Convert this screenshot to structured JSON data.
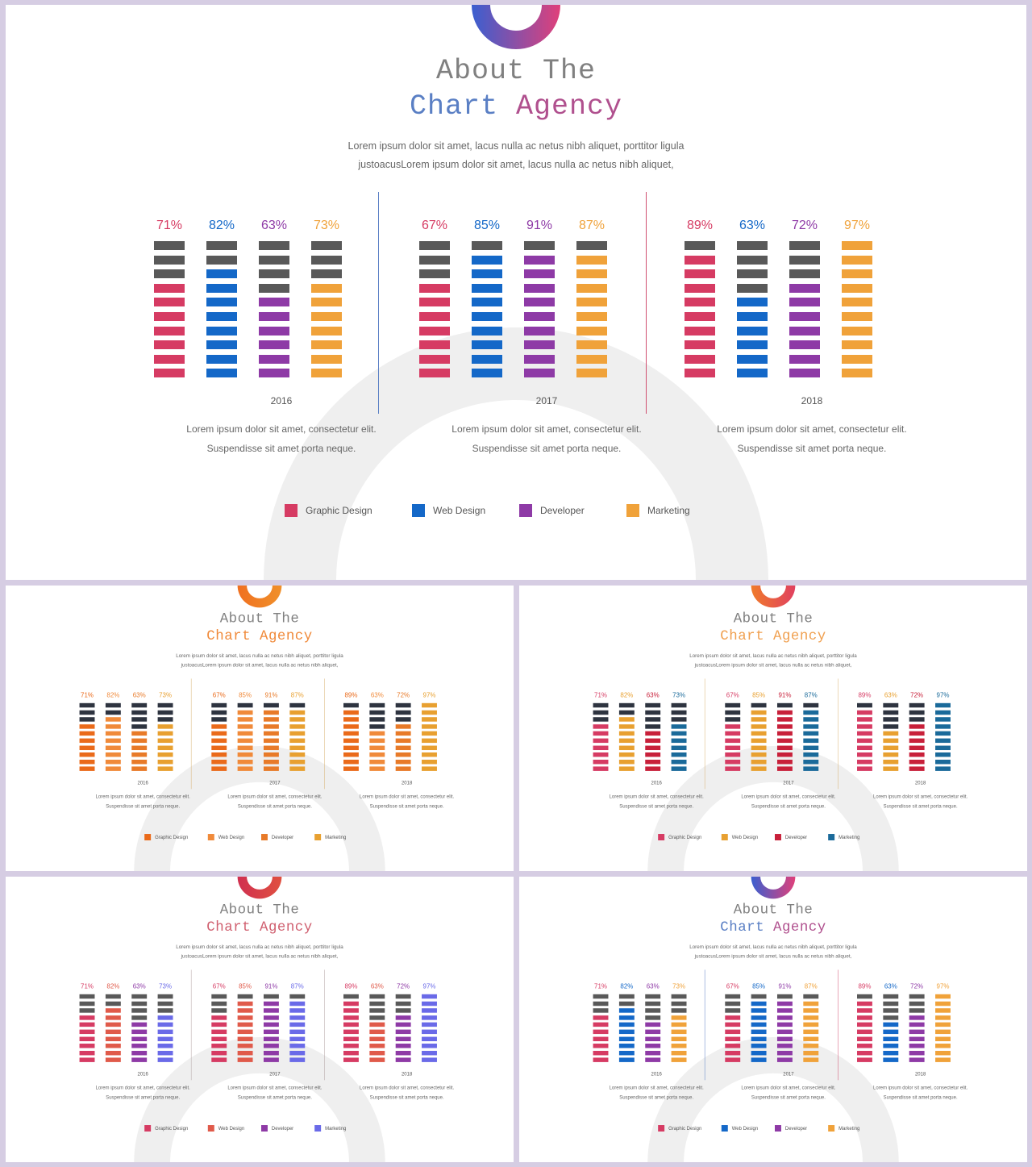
{
  "slides": [
    {
      "title_line1": "About The",
      "title_word1": "Chart",
      "title_word2": "Agency",
      "title_colors": [
        "#5a7fc4",
        "#b0508e"
      ],
      "intro_line1": "Lorem  ipsum dolor sit amet, lacus nulla ac netus nibh aliquet, porttitor ligula",
      "intro_line2": "justoacusLorem ipsum dolor sit amet, lacus nulla ac netus nibh aliquet,",
      "top_arc_colors": [
        "#3a5fd0",
        "#e0407a"
      ],
      "divider_colors": [
        "#5a7fc4",
        "#d05070"
      ],
      "series_colors": [
        "#d63b63",
        "#1468c8",
        "#8e3aa6",
        "#f0a23a"
      ],
      "gray": "#595959",
      "legend": [
        "Graphic Design",
        "Web Design",
        "Developer",
        "Marketing"
      ],
      "panels": [
        {
          "year": "2016",
          "values": [
            71,
            82,
            63,
            73
          ],
          "labels": [
            "71%",
            "82%",
            "63%",
            "73%"
          ],
          "desc1": "Lorem  ipsum dolor sit amet, consectetur elit.",
          "desc2": "Suspendisse sit amet porta neque."
        },
        {
          "year": "2017",
          "values": [
            67,
            85,
            91,
            87
          ],
          "labels": [
            "67%",
            "85%",
            "91%",
            "87%"
          ],
          "desc1": "Lorem  ipsum dolor sit amet, consectetur elit.",
          "desc2": "Suspendisse sit amet porta neque."
        },
        {
          "year": "2018",
          "values": [
            89,
            63,
            72,
            97
          ],
          "labels": [
            "89%",
            "63%",
            "72%",
            "97%"
          ],
          "desc1": "Lorem  ipsum dolor sit amet, consectetur elit.",
          "desc2": "Suspendisse sit amet porta neque."
        }
      ]
    },
    {
      "title_line1": "About The",
      "title_word1": "Chart",
      "title_word2": "Agency",
      "title_colors": [
        "#f08a3a",
        "#f08a3a"
      ],
      "intro_line1": "Lorem  ipsum dolor sit amet, lacus nulla ac netus nibh aliquet, porttitor ligula",
      "intro_line2": "justoacusLorem ipsum dolor sit amet, lacus nulla ac netus nibh aliquet,",
      "top_arc_colors": [
        "#f07020",
        "#f0902a"
      ],
      "divider_colors": [
        "#d8b070",
        "#d8b070"
      ],
      "series_colors": [
        "#ea6a1a",
        "#f08a3a",
        "#e87a28",
        "#e8a030"
      ],
      "gray": "#2e3440",
      "legend": [
        "Graphic Design",
        "Web Design",
        "Developer",
        "Marketing"
      ],
      "panels": [
        {
          "year": "2016",
          "values": [
            71,
            82,
            63,
            73
          ],
          "labels": [
            "71%",
            "82%",
            "63%",
            "73%"
          ],
          "desc1": "Lorem  ipsum dolor sit amet, consectetur elit.",
          "desc2": "Suspendisse sit amet porta neque."
        },
        {
          "year": "2017",
          "values": [
            67,
            85,
            91,
            87
          ],
          "labels": [
            "67%",
            "85%",
            "91%",
            "87%"
          ],
          "desc1": "Lorem  ipsum dolor sit amet, consectetur elit.",
          "desc2": "Suspendisse sit amet porta neque."
        },
        {
          "year": "2018",
          "values": [
            89,
            63,
            72,
            97
          ],
          "labels": [
            "89%",
            "63%",
            "72%",
            "97%"
          ],
          "desc1": "Lorem  ipsum dolor sit amet, consectetur elit.",
          "desc2": "Suspendisse sit amet porta neque."
        }
      ]
    },
    {
      "title_line1": "About The",
      "title_word1": "Chart",
      "title_word2": "Agency",
      "title_colors": [
        "#f0a050",
        "#f0a050"
      ],
      "intro_line1": "Lorem  ipsum dolor sit amet, lacus nulla ac netus nibh aliquet, porttitor ligula",
      "intro_line2": "justoacusLorem ipsum dolor sit amet, lacus nulla ac netus nibh aliquet,",
      "top_arc_colors": [
        "#f07a2a",
        "#e04060"
      ],
      "divider_colors": [
        "#d8b070",
        "#d8b070"
      ],
      "series_colors": [
        "#d63b63",
        "#e8a030",
        "#c8203a",
        "#1a6a9a"
      ],
      "gray": "#2e3440",
      "legend": [
        "Graphic Design",
        "Web Design",
        "Developer",
        "Marketing"
      ],
      "panels": [
        {
          "year": "2016",
          "values": [
            71,
            82,
            63,
            73
          ],
          "labels": [
            "71%",
            "82%",
            "63%",
            "73%"
          ],
          "desc1": "Lorem  ipsum dolor sit amet, consectetur elit.",
          "desc2": "Suspendisse sit amet porta neque."
        },
        {
          "year": "2017",
          "values": [
            67,
            85,
            91,
            87
          ],
          "labels": [
            "67%",
            "85%",
            "91%",
            "87%"
          ],
          "desc1": "Lorem  ipsum dolor sit amet, consectetur elit.",
          "desc2": "Suspendisse sit amet porta neque."
        },
        {
          "year": "2018",
          "values": [
            89,
            63,
            72,
            97
          ],
          "labels": [
            "89%",
            "63%",
            "72%",
            "97%"
          ],
          "desc1": "Lorem  ipsum dolor sit amet, consectetur elit.",
          "desc2": "Suspendisse sit amet porta neque."
        }
      ]
    },
    {
      "title_line1": "About The",
      "title_word1": "Chart",
      "title_word2": "Agency",
      "title_colors": [
        "#d06070",
        "#d06070"
      ],
      "intro_line1": "Lorem  ipsum dolor sit amet, lacus nulla ac netus nibh aliquet, porttitor ligula",
      "intro_line2": "justoacusLorem ipsum dolor sit amet, lacus nulla ac netus nibh aliquet,",
      "top_arc_colors": [
        "#d03050",
        "#e05040"
      ],
      "divider_colors": [
        "#b0a0a0",
        "#b0a0a0"
      ],
      "series_colors": [
        "#d63b63",
        "#e05a4a",
        "#8e3aa6",
        "#6a6ae8"
      ],
      "gray": "#595959",
      "legend": [
        "Graphic Design",
        "Web Design",
        "Developer",
        "Marketing"
      ],
      "panels": [
        {
          "year": "2016",
          "values": [
            71,
            82,
            63,
            73
          ],
          "labels": [
            "71%",
            "82%",
            "63%",
            "73%"
          ],
          "desc1": "Lorem  ipsum dolor sit amet, consectetur elit.",
          "desc2": "Suspendisse sit amet porta neque."
        },
        {
          "year": "2017",
          "values": [
            67,
            85,
            91,
            87
          ],
          "labels": [
            "67%",
            "85%",
            "91%",
            "87%"
          ],
          "desc1": "Lorem  ipsum dolor sit amet, consectetur elit.",
          "desc2": "Suspendisse sit amet porta neque."
        },
        {
          "year": "2018",
          "values": [
            89,
            63,
            72,
            97
          ],
          "labels": [
            "89%",
            "63%",
            "72%",
            "97%"
          ],
          "desc1": "Lorem  ipsum dolor sit amet, consectetur elit.",
          "desc2": "Suspendisse sit amet porta neque."
        }
      ]
    },
    {
      "title_line1": "About The",
      "title_word1": "Chart",
      "title_word2": "Agency",
      "title_colors": [
        "#5a7fc4",
        "#b0508e"
      ],
      "intro_line1": "Lorem  ipsum dolor sit amet, lacus nulla ac netus nibh aliquet, porttitor ligula",
      "intro_line2": "justoacusLorem ipsum dolor sit amet, lacus nulla ac netus nibh aliquet,",
      "top_arc_colors": [
        "#3a5fd0",
        "#e0407a"
      ],
      "divider_colors": [
        "#5a7fc4",
        "#d05070"
      ],
      "series_colors": [
        "#d63b63",
        "#1468c8",
        "#8e3aa6",
        "#f0a23a"
      ],
      "gray": "#595959",
      "legend": [
        "Graphic Design",
        "Web Design",
        "Developer",
        "Marketing"
      ],
      "panels": [
        {
          "year": "2016",
          "values": [
            71,
            82,
            63,
            73
          ],
          "labels": [
            "71%",
            "82%",
            "63%",
            "73%"
          ],
          "desc1": "Lorem  ipsum dolor sit amet, consectetur elit.",
          "desc2": "Suspendisse sit amet porta neque."
        },
        {
          "year": "2017",
          "values": [
            67,
            85,
            91,
            87
          ],
          "labels": [
            "67%",
            "85%",
            "91%",
            "87%"
          ],
          "desc1": "Lorem  ipsum dolor sit amet, consectetur elit.",
          "desc2": "Suspendisse sit amet porta neque."
        },
        {
          "year": "2018",
          "values": [
            89,
            63,
            72,
            97
          ],
          "labels": [
            "89%",
            "63%",
            "72%",
            "97%"
          ],
          "desc1": "Lorem  ipsum dolor sit amet, consectetur elit.",
          "desc2": "Suspendisse sit amet porta neque."
        }
      ]
    }
  ]
}
